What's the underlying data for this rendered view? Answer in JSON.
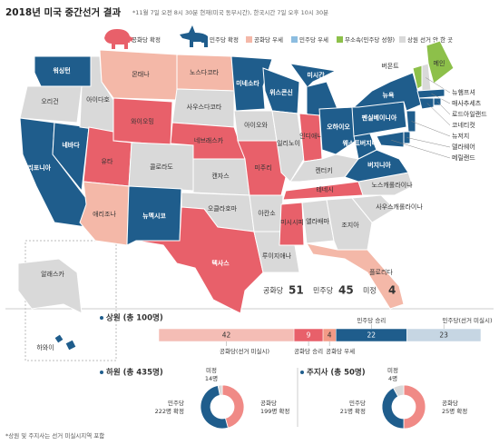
{
  "header": {
    "title": "2018년 미국 중간선거 결과",
    "note": "*11월 7일 오전 8시 30분 현재(미국 동부시간), 한국시간 7일 오후 10시 30분"
  },
  "legend": [
    {
      "label": "공화당 확정",
      "color": "#e8606a"
    },
    {
      "label": "민주당 확정",
      "color": "#1f5d8c"
    },
    {
      "label": "공화당 우세",
      "color": "#f4b8a8"
    },
    {
      "label": "민주당 우세",
      "color": "#8cbde0"
    },
    {
      "label": "무소속(민주당 성향)",
      "color": "#8dc04a"
    },
    {
      "label": "상원 선거 안 한 곳",
      "color": "#d9d9d9"
    }
  ],
  "states": [
    {
      "label": "워싱턴",
      "status": "민주당 확정"
    },
    {
      "label": "오리건",
      "status": "상원 선거 안 한 곳"
    },
    {
      "label": "캘리포니아",
      "status": "민주당 확정"
    },
    {
      "label": "네바다",
      "status": "민주당 확정"
    },
    {
      "label": "아이다호",
      "status": "상원 선거 안 한 곳"
    },
    {
      "label": "몬태나",
      "status": "공화당 우세"
    },
    {
      "label": "와이오밍",
      "status": "공화당 확정"
    },
    {
      "label": "유타",
      "status": "공화당 확정"
    },
    {
      "label": "애리조나",
      "status": "공화당 우세"
    },
    {
      "label": "콜로라도",
      "status": "상원 선거 안 한 곳"
    },
    {
      "label": "뉴멕시코",
      "status": "민주당 확정"
    },
    {
      "label": "노스다코타",
      "status": "공화당 우세"
    },
    {
      "label": "사우스다코타",
      "status": "상원 선거 안 한 곳"
    },
    {
      "label": "네브래스카",
      "status": "공화당 확정"
    },
    {
      "label": "캔자스",
      "status": "상원 선거 안 한 곳"
    },
    {
      "label": "오클라호마",
      "status": "상원 선거 안 한 곳"
    },
    {
      "label": "텍사스",
      "status": "공화당 확정"
    },
    {
      "label": "미네소타",
      "status": "민주당 확정"
    },
    {
      "label": "아이오와",
      "status": "상원 선거 안 한 곳"
    },
    {
      "label": "미주리",
      "status": "공화당 확정"
    },
    {
      "label": "아칸소",
      "status": "상원 선거 안 한 곳"
    },
    {
      "label": "루이지애나",
      "status": "상원 선거 안 한 곳"
    },
    {
      "label": "위스콘신",
      "status": "민주당 확정"
    },
    {
      "label": "일리노이",
      "status": "상원 선거 안 한 곳"
    },
    {
      "label": "미시간",
      "status": "민주당 확정"
    },
    {
      "label": "인디애나",
      "status": "공화당 확정"
    },
    {
      "label": "오하이오",
      "status": "민주당 확정"
    },
    {
      "label": "켄터키",
      "status": "상원 선거 안 한 곳"
    },
    {
      "label": "테네시",
      "status": "공화당 확정"
    },
    {
      "label": "미시시피",
      "status": "공화당 확정"
    },
    {
      "label": "앨라배마",
      "status": "상원 선거 안 한 곳"
    },
    {
      "label": "조지아",
      "status": "상원 선거 안 한 곳"
    },
    {
      "label": "플로리다",
      "status": "공화당 우세"
    },
    {
      "label": "사우스캐롤라이나",
      "status": "상원 선거 안 한 곳"
    },
    {
      "label": "노스캐롤라이나",
      "status": "상원 선거 안 한 곳"
    },
    {
      "label": "버지니아",
      "status": "민주당 확정"
    },
    {
      "label": "웨스트버지니아",
      "status": "민주당 확정"
    },
    {
      "label": "펜실베이니아",
      "status": "민주당 확정"
    },
    {
      "label": "뉴욕",
      "status": "민주당 확정"
    },
    {
      "label": "버몬트",
      "status": "무소속(민주당 성향)"
    },
    {
      "label": "메인",
      "status": "무소속(민주당 성향)"
    },
    {
      "label": "뉴햄프셔",
      "status": "상원 선거 안 한 곳"
    },
    {
      "label": "매사추세츠",
      "status": "민주당 확정"
    },
    {
      "label": "로드아일랜드",
      "status": "민주당 확정"
    },
    {
      "label": "코네티컷",
      "status": "민주당 확정"
    },
    {
      "label": "뉴저지",
      "status": "민주당 확정"
    },
    {
      "label": "델라웨어",
      "status": "민주당 확정"
    },
    {
      "label": "메릴랜드",
      "status": "민주당 확정"
    },
    {
      "label": "알래스카",
      "status": "상원 선거 안 한 곳"
    },
    {
      "label": "하와이",
      "status": "민주당 확정"
    }
  ],
  "summary": [
    {
      "label": "공화당",
      "value": 51
    },
    {
      "label": "민주당",
      "value": 45
    },
    {
      "label": "미정",
      "value": 4
    }
  ],
  "senate": {
    "title": "상원 (총 100명)",
    "segments": [
      {
        "label": "공화당(선거 미실시)",
        "value": 42,
        "color": "#f4bdb5"
      },
      {
        "label": "공화당 승리",
        "value": 9,
        "color": "#e8606a"
      },
      {
        "label": "공화당 우세",
        "value": 4,
        "color": "#f29a86"
      },
      {
        "label": "민주당 승리",
        "value": 22,
        "color": "#1f5d8c"
      },
      {
        "label": "민주당(선거 미실시)",
        "value": 23,
        "color": "#c6d6e3"
      }
    ]
  },
  "house": {
    "title": "하원 (총 435명)",
    "segments": [
      {
        "name": "공화당",
        "value": 199,
        "value_label": "199명 확정",
        "color": "#f08a86"
      },
      {
        "name": "민주당",
        "value": 222,
        "value_label": "222명 확정",
        "color": "#1f5d8c"
      },
      {
        "name": "미정",
        "value": 14,
        "value_label": "14명",
        "color": "#d9d9d9"
      }
    ]
  },
  "governor": {
    "title": "주지사 (총 50명)",
    "segments": [
      {
        "name": "공화당",
        "value": 25,
        "value_label": "25명 확정",
        "color": "#f08a86"
      },
      {
        "name": "민주당",
        "value": 21,
        "value_label": "21명 확정",
        "color": "#1f5d8c"
      },
      {
        "name": "미정",
        "value": 4,
        "value_label": "4명",
        "color": "#d9d9d9"
      }
    ]
  },
  "footnote": "*상원 및 주지사는 선거 미실시지역 포함"
}
